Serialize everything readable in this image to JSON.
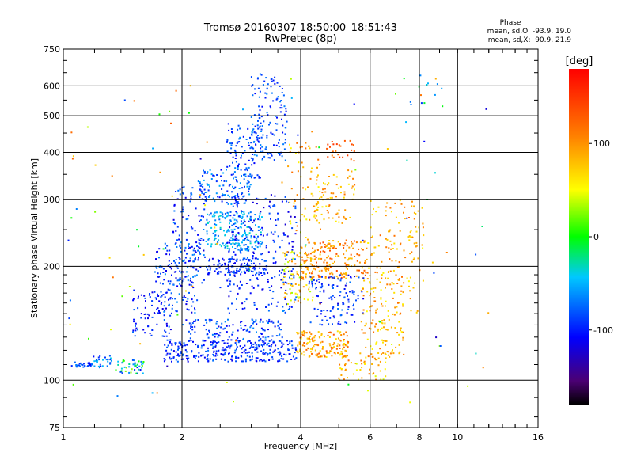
{
  "chart_data": {
    "type": "scatter",
    "title": "Tromsø 20160307 18:50:00–18:51:43",
    "subtitle": "RwPretec (8p)",
    "xlabel": "Frequency [MHz]",
    "ylabel": "Stationary phase Virtual Height [km]",
    "x_scale": "log",
    "y_scale": "log",
    "xlim": [
      1,
      16
    ],
    "ylim": [
      75,
      750
    ],
    "x_ticks": [
      {
        "value": 1,
        "label": "1"
      },
      {
        "value": 2,
        "label": "2"
      },
      {
        "value": 4,
        "label": "4"
      },
      {
        "value": 6,
        "label": "6"
      },
      {
        "value": 8,
        "label": "8"
      },
      {
        "value": 10,
        "label": "10"
      },
      {
        "value": 16,
        "label": "16"
      }
    ],
    "y_ticks": [
      {
        "value": 75,
        "label": "75"
      },
      {
        "value": 100,
        "label": "100"
      },
      {
        "value": 200,
        "label": "200"
      },
      {
        "value": 300,
        "label": "300"
      },
      {
        "value": 400,
        "label": "400"
      },
      {
        "value": 500,
        "label": "500"
      },
      {
        "value": 600,
        "label": "600"
      },
      {
        "value": 750,
        "label": "750"
      }
    ],
    "grid": true,
    "phase_stats": {
      "header": "Phase",
      "o_line": "mean, sd,O: -93.9, 19.0",
      "x_line": "mean, sd,X:  90.9, 21.9"
    },
    "colorbar": {
      "label": "[deg]",
      "range": [
        -180,
        180
      ],
      "ticks": [
        {
          "value": 100,
          "label": "100"
        },
        {
          "value": 0,
          "label": "0"
        },
        {
          "value": -100,
          "label": "-100"
        }
      ]
    },
    "clusters": [
      {
        "f": [
          1.05,
          1.18
        ],
        "h": [
          108,
          112
        ],
        "phase": [
          -110,
          -60
        ],
        "n": 30
      },
      {
        "f": [
          1.18,
          1.35
        ],
        "h": [
          108,
          116
        ],
        "phase": [
          -110,
          -40
        ],
        "n": 30
      },
      {
        "f": [
          1.35,
          1.6
        ],
        "h": [
          104,
          114
        ],
        "phase": [
          -110,
          40
        ],
        "n": 45
      },
      {
        "f": [
          1.5,
          1.9
        ],
        "h": [
          130,
          175
        ],
        "phase": [
          -120,
          -70
        ],
        "n": 80
      },
      {
        "f": [
          1.7,
          2.2
        ],
        "h": [
          150,
          230
        ],
        "phase": [
          -120,
          -60
        ],
        "n": 140
      },
      {
        "f": [
          1.9,
          2.3
        ],
        "h": [
          180,
          330
        ],
        "phase": [
          -120,
          -60
        ],
        "n": 110
      },
      {
        "f": [
          1.8,
          3.9
        ],
        "h": [
          112,
          128
        ],
        "phase": [
          -115,
          -70
        ],
        "n": 320
      },
      {
        "f": [
          2.0,
          3.6
        ],
        "h": [
          128,
          145
        ],
        "phase": [
          -115,
          -60
        ],
        "n": 120
      },
      {
        "f": [
          2.3,
          3.2
        ],
        "h": [
          220,
          280
        ],
        "phase": [
          -80,
          -30
        ],
        "n": 200
      },
      {
        "f": [
          2.2,
          3.0
        ],
        "h": [
          290,
          360
        ],
        "phase": [
          -110,
          -50
        ],
        "n": 120
      },
      {
        "f": [
          2.3,
          3.3
        ],
        "h": [
          190,
          210
        ],
        "phase": [
          -120,
          -70
        ],
        "n": 120
      },
      {
        "f": [
          2.6,
          3.2
        ],
        "h": [
          340,
          480
        ],
        "phase": [
          -110,
          -60
        ],
        "n": 110
      },
      {
        "f": [
          3.0,
          3.7
        ],
        "h": [
          380,
          650
        ],
        "phase": [
          -110,
          -60
        ],
        "n": 130
      },
      {
        "f": [
          2.6,
          3.9
        ],
        "h": [
          150,
          310
        ],
        "phase": [
          -125,
          -70
        ],
        "n": 260
      },
      {
        "f": [
          3.6,
          4.3
        ],
        "h": [
          160,
          220
        ],
        "phase": [
          30,
          110
        ],
        "n": 90
      },
      {
        "f": [
          3.7,
          4.5
        ],
        "h": [
          230,
          430
        ],
        "phase": [
          40,
          120
        ],
        "n": 60
      },
      {
        "f": [
          3.9,
          5.3
        ],
        "h": [
          115,
          135
        ],
        "phase": [
          60,
          130
        ],
        "n": 160
      },
      {
        "f": [
          4.3,
          5.5
        ],
        "h": [
          260,
          360
        ],
        "phase": [
          50,
          120
        ],
        "n": 80
      },
      {
        "f": [
          4.0,
          5.9
        ],
        "h": [
          185,
          235
        ],
        "phase": [
          70,
          140
        ],
        "n": 200
      },
      {
        "f": [
          4.2,
          5.8
        ],
        "h": [
          140,
          190
        ],
        "phase": [
          -120,
          -70
        ],
        "n": 120
      },
      {
        "f": [
          4.6,
          5.5
        ],
        "h": [
          380,
          430
        ],
        "phase": [
          110,
          150
        ],
        "n": 25
      },
      {
        "f": [
          5.7,
          7.3
        ],
        "h": [
          115,
          200
        ],
        "phase": [
          50,
          120
        ],
        "n": 160
      },
      {
        "f": [
          5.0,
          6.6
        ],
        "h": [
          100,
          118
        ],
        "phase": [
          40,
          120
        ],
        "n": 60
      },
      {
        "f": [
          6.0,
          8.0
        ],
        "h": [
          205,
          300
        ],
        "phase": [
          60,
          120
        ],
        "n": 70
      },
      {
        "f": [
          7.5,
          8.2
        ],
        "h": [
          150,
          290
        ],
        "phase": [
          50,
          110
        ],
        "n": 30
      },
      {
        "f": [
          7.4,
          9.4
        ],
        "h": [
          520,
          640
        ],
        "phase": [
          -110,
          120
        ],
        "n": 14
      },
      {
        "f": [
          1.0,
          12.0
        ],
        "h": [
          85,
          640
        ],
        "phase": [
          -130,
          130
        ],
        "n": 110
      }
    ]
  }
}
